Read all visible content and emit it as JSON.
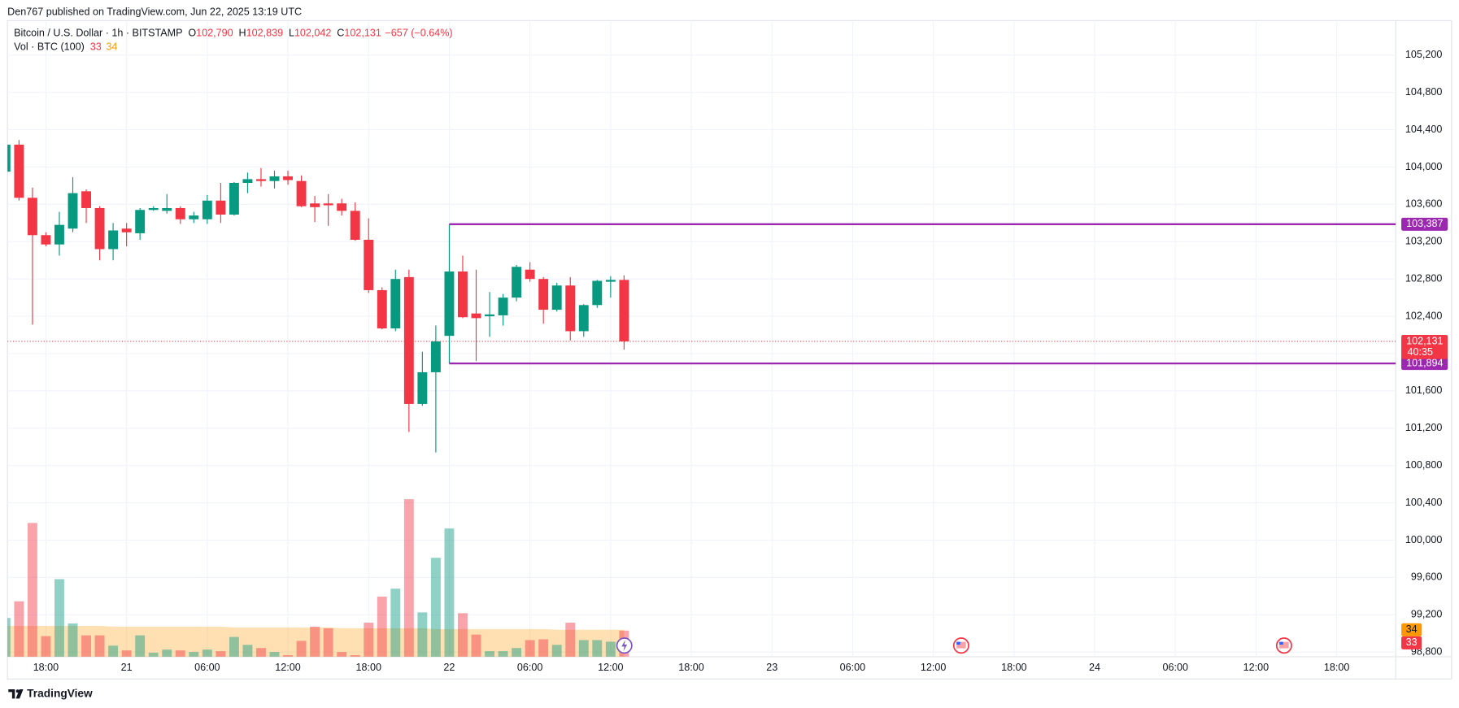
{
  "header": {
    "publisher": "Den767 published on TradingView.com, Jun 22, 2025 13:19 UTC"
  },
  "footer": {
    "brand": "TradingView"
  },
  "chart_data": {
    "type": "candlestick",
    "legend": {
      "symbol": "Bitcoin / U.S. Dollar · 1h · BITSTAMP",
      "ohlc": [
        {
          "key": "O",
          "value": "102,790"
        },
        {
          "key": "H",
          "value": "102,839"
        },
        {
          "key": "L",
          "value": "102,042"
        },
        {
          "key": "C",
          "value": "102,131"
        }
      ],
      "change": "−657 (−0.64%)"
    },
    "volume_legend": {
      "name": "Vol · BTC (100)",
      "values": [
        "33",
        "34"
      ]
    },
    "x": [
      -9,
      -8,
      -7,
      -6,
      -5,
      -4,
      -3,
      -2,
      -1,
      0,
      1,
      2,
      3,
      4,
      5,
      6,
      7,
      8,
      9,
      10,
      11,
      12,
      13,
      14,
      15,
      16,
      17,
      18,
      19,
      20,
      21,
      22,
      23,
      24,
      25,
      26,
      27,
      28,
      29,
      30,
      31,
      32,
      33,
      34,
      35,
      36,
      37
    ],
    "open": [
      103950,
      104240,
      103670,
      103270,
      103170,
      103340,
      103740,
      103560,
      103120,
      103340,
      103290,
      103540,
      103530,
      103560,
      103440,
      103440,
      103640,
      103490,
      103830,
      103870,
      103850,
      103900,
      103850,
      103610,
      103610,
      103610,
      103530,
      103220,
      102680,
      102270,
      102820,
      101460,
      101800,
      102190,
      102880,
      102430,
      102400,
      102410,
      102600,
      102900,
      102800,
      102470,
      102730,
      102240,
      102520,
      102770,
      102790
    ],
    "high": [
      104290,
      104290,
      103780,
      103300,
      103520,
      103890,
      103760,
      103580,
      103400,
      103400,
      103560,
      103580,
      103710,
      103580,
      103520,
      103700,
      103830,
      103840,
      103940,
      103990,
      103960,
      103960,
      103910,
      103690,
      103710,
      103660,
      103620,
      103450,
      102710,
      102900,
      102900,
      102020,
      102300,
      103387,
      103050,
      102900,
      102660,
      102640,
      102950,
      102980,
      102820,
      102760,
      102820,
      102530,
      102790,
      102830,
      102839
    ],
    "low": [
      103930,
      103640,
      102310,
      103150,
      103050,
      103300,
      103400,
      103000,
      103000,
      103150,
      103220,
      103530,
      103500,
      103390,
      103400,
      103390,
      103400,
      103480,
      103720,
      103790,
      103770,
      103810,
      103570,
      103410,
      103370,
      103480,
      103210,
      102650,
      102260,
      102240,
      101160,
      101440,
      100940,
      101894,
      102380,
      101920,
      102180,
      102300,
      102560,
      102770,
      102320,
      102450,
      102140,
      102180,
      102490,
      102600,
      102042
    ],
    "close": [
      104240,
      103670,
      103270,
      103170,
      103380,
      103720,
      103560,
      103120,
      103320,
      103300,
      103540,
      103560,
      103560,
      103440,
      103480,
      103640,
      103490,
      103830,
      103870,
      103850,
      103900,
      103860,
      103580,
      103570,
      103590,
      103530,
      103220,
      102680,
      102270,
      102800,
      101460,
      101800,
      102130,
      102880,
      102390,
      102380,
      102420,
      102600,
      102930,
      102800,
      102470,
      102730,
      102240,
      102520,
      102780,
      102790,
      102131
    ],
    "volume": [
      49,
      70,
      169,
      26,
      98,
      42,
      27,
      27,
      14,
      8,
      27,
      5,
      9,
      8,
      6,
      9,
      7,
      25,
      15,
      11,
      6,
      2,
      20,
      38,
      36,
      6,
      2,
      43,
      76,
      86,
      199,
      56,
      125,
      162,
      55,
      28,
      7,
      7,
      11,
      21,
      22,
      15,
      43,
      21,
      21,
      19,
      33
    ],
    "volume_ma": [
      39,
      39,
      39,
      39,
      39,
      39,
      39,
      39,
      38,
      38,
      38,
      38,
      38,
      38,
      38,
      38,
      38,
      37,
      37,
      37,
      37,
      37,
      37,
      37,
      37,
      36,
      36,
      36,
      36,
      36,
      36,
      36,
      35,
      35,
      35,
      35,
      35,
      35,
      35,
      35,
      35,
      34,
      34,
      34,
      34,
      34,
      34
    ],
    "up_color": "#089981",
    "down_color": "#f23645",
    "volume_ma_color": "#ff9800",
    "xlim": [
      -8.86,
      94.39
    ],
    "xticks": [
      {
        "value": -6,
        "label": "18:00"
      },
      {
        "value": 0,
        "label": "21"
      },
      {
        "value": 6,
        "label": "06:00"
      },
      {
        "value": 12,
        "label": "12:00"
      },
      {
        "value": 18,
        "label": "18:00"
      },
      {
        "value": 24,
        "label": "22"
      },
      {
        "value": 30,
        "label": "06:00"
      },
      {
        "value": 36,
        "label": "12:00"
      },
      {
        "value": 42,
        "label": "18:00"
      },
      {
        "value": 48,
        "label": "23"
      },
      {
        "value": 54,
        "label": "06:00"
      },
      {
        "value": 60,
        "label": "12:00"
      },
      {
        "value": 66,
        "label": "18:00"
      },
      {
        "value": 72,
        "label": "24"
      },
      {
        "value": 78,
        "label": "06:00"
      },
      {
        "value": 84,
        "label": "12:00"
      },
      {
        "value": 90,
        "label": "18:00"
      }
    ],
    "ylim": [
      98750,
      105570
    ],
    "yticks": [
      {
        "value": 98800,
        "label": "98,800"
      },
      {
        "value": 99200,
        "label": "99,200"
      },
      {
        "value": 99600,
        "label": "99,600"
      },
      {
        "value": 100000,
        "label": "100,000"
      },
      {
        "value": 100400,
        "label": "100,400"
      },
      {
        "value": 100800,
        "label": "100,800"
      },
      {
        "value": 101200,
        "label": "101,200"
      },
      {
        "value": 101600,
        "label": "101,600"
      },
      {
        "value": 102000,
        "label": "102,000"
      },
      {
        "value": 102400,
        "label": "102,400"
      },
      {
        "value": 102800,
        "label": "102,800"
      },
      {
        "value": 103200,
        "label": "103,200"
      },
      {
        "value": 103600,
        "label": "103,600"
      },
      {
        "value": 104000,
        "label": "104,000"
      },
      {
        "value": 104400,
        "label": "104,400"
      },
      {
        "value": 104800,
        "label": "104,800"
      },
      {
        "value": 105200,
        "label": "105,200"
      }
    ],
    "volume_ylim": [
      0,
      235
    ],
    "grid": true,
    "levels": [
      {
        "value": 103387,
        "label": "103,387",
        "from": 24,
        "color": "#9c27b0"
      },
      {
        "value": 101894,
        "label": "101,894",
        "from": 24,
        "color": "#9c27b0"
      }
    ],
    "last_price": {
      "value": 102131,
      "label": "102,131",
      "countdown": "40:35"
    }
  }
}
